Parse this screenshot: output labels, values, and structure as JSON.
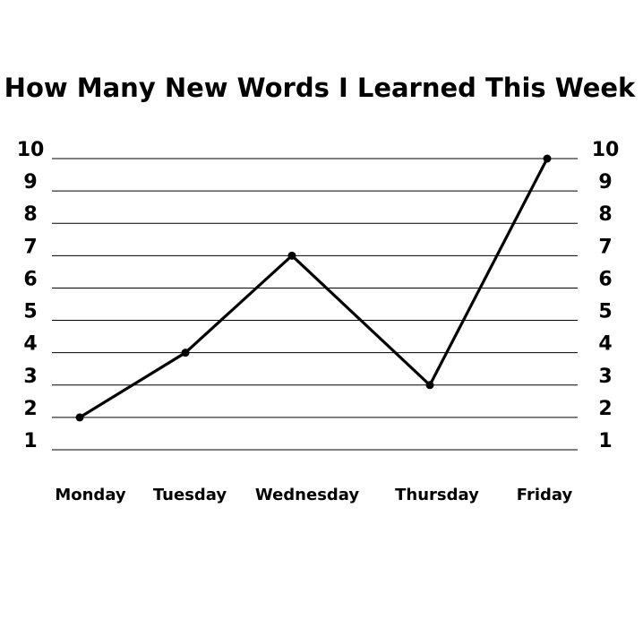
{
  "chart_data": {
    "type": "line",
    "title": "How Many New Words I Learned This Week",
    "xlabel": "",
    "ylabel": "",
    "categories": [
      "Monday",
      "Tuesday",
      "Wednesday",
      "Thursday",
      "Friday"
    ],
    "values": [
      2,
      4,
      7,
      3,
      10
    ],
    "y_ticks": [
      "1",
      "2",
      "3",
      "4",
      "5",
      "6",
      "7",
      "8",
      "9",
      "10"
    ],
    "ylim": [
      1,
      10
    ],
    "grid": true,
    "y_axis_labels_both_sides": true,
    "line_color": "#000000",
    "grid_color": "#000000"
  }
}
